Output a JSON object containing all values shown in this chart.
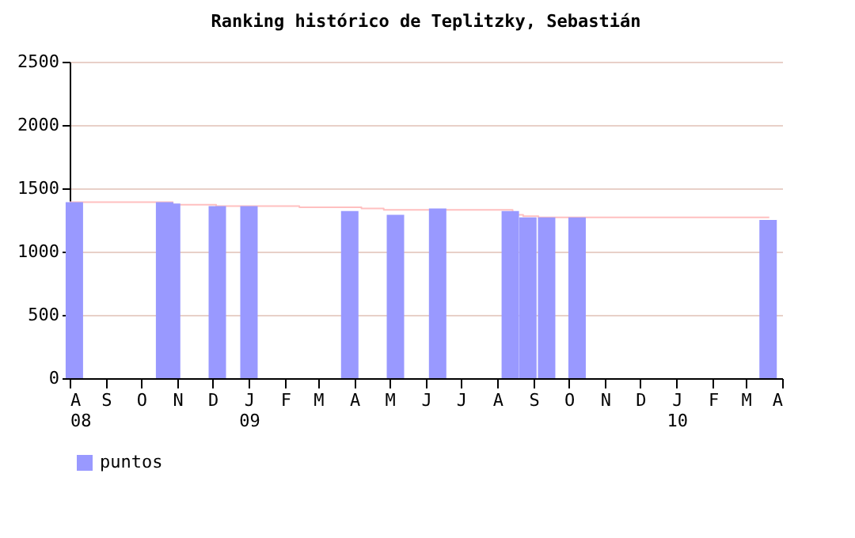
{
  "chart_data": {
    "type": "bar",
    "title": "Ranking histórico de Teplitzky, Sebastián",
    "xlim": [
      "2008-08-01",
      "2010-04-01"
    ],
    "xticks": [
      {
        "value": "2008-08-01",
        "label": "A\n08"
      },
      {
        "value": "2008-09-01",
        "label": "S"
      },
      {
        "value": "2008-10-01",
        "label": "O"
      },
      {
        "value": "2008-11-01",
        "label": "N"
      },
      {
        "value": "2008-12-01",
        "label": "D"
      },
      {
        "value": "2009-01-01",
        "label": "J\n09"
      },
      {
        "value": "2009-02-01",
        "label": "F"
      },
      {
        "value": "2009-03-01",
        "label": "M"
      },
      {
        "value": "2009-04-01",
        "label": "A"
      },
      {
        "value": "2009-05-01",
        "label": "M"
      },
      {
        "value": "2009-06-01",
        "label": "J"
      },
      {
        "value": "2009-07-01",
        "label": "J"
      },
      {
        "value": "2009-08-01",
        "label": "A"
      },
      {
        "value": "2009-09-01",
        "label": "S"
      },
      {
        "value": "2009-10-01",
        "label": "O"
      },
      {
        "value": "2009-11-01",
        "label": "N"
      },
      {
        "value": "2009-12-01",
        "label": "D"
      },
      {
        "value": "2010-01-01",
        "label": "J\n10"
      },
      {
        "value": "2010-02-01",
        "label": "F"
      },
      {
        "value": "2010-03-01",
        "label": "M"
      },
      {
        "value": "2010-04-01",
        "label": "A"
      }
    ],
    "ylim": [
      0,
      2500
    ],
    "yticks": [
      0,
      500,
      1000,
      1500,
      2000,
      2500
    ],
    "grid": "y",
    "legend": "bottom left",
    "series": [
      {
        "type": "step",
        "color": "#ffc0c0",
        "x": [
          "2008-08-01",
          "2008-10-28",
          "2008-12-04",
          "2009-02-13",
          "2009-04-07",
          "2009-04-26",
          "2009-08-14",
          "2009-08-23",
          "2009-09-05",
          "2010-03-21"
        ],
        "values": [
          1390,
          1370,
          1360,
          1350,
          1340,
          1330,
          1290,
          1280,
          1270,
          1270
        ]
      },
      {
        "name": "puntos",
        "color": "#9999ff",
        "x": [
          "2008-08-05",
          "2008-10-21",
          "2008-10-27",
          "2008-12-05",
          "2009-01-01",
          "2009-03-28",
          "2009-05-06",
          "2009-06-11",
          "2009-08-12",
          "2009-08-27",
          "2009-09-12",
          "2009-10-08",
          "2010-03-20"
        ],
        "values": [
          1390,
          1390,
          1380,
          1360,
          1360,
          1320,
          1290,
          1340,
          1320,
          1270,
          1270,
          1270,
          1250
        ]
      }
    ]
  }
}
